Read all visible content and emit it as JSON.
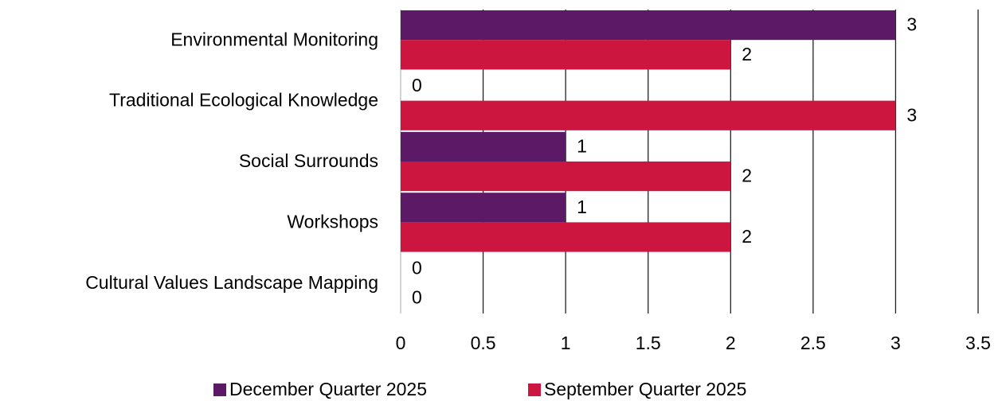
{
  "chart_data": {
    "type": "bar",
    "orientation": "horizontal",
    "categories": [
      "Environmental Monitoring",
      "Traditional Ecological Knowledge",
      "Social Surrounds",
      "Workshops",
      "Cultural Values Landscape Mapping"
    ],
    "series": [
      {
        "name": "December Quarter 2025",
        "color": "#5c1a66",
        "values": [
          3,
          0,
          1,
          1,
          0
        ]
      },
      {
        "name": "September Quarter 2025",
        "color": "#cc163f",
        "values": [
          2,
          3,
          2,
          2,
          0
        ]
      }
    ],
    "xlim": [
      0,
      3.5
    ],
    "xticks": [
      0,
      0.5,
      1,
      1.5,
      2,
      2.5,
      3,
      3.5
    ],
    "grid": true,
    "legend": "bottom"
  }
}
